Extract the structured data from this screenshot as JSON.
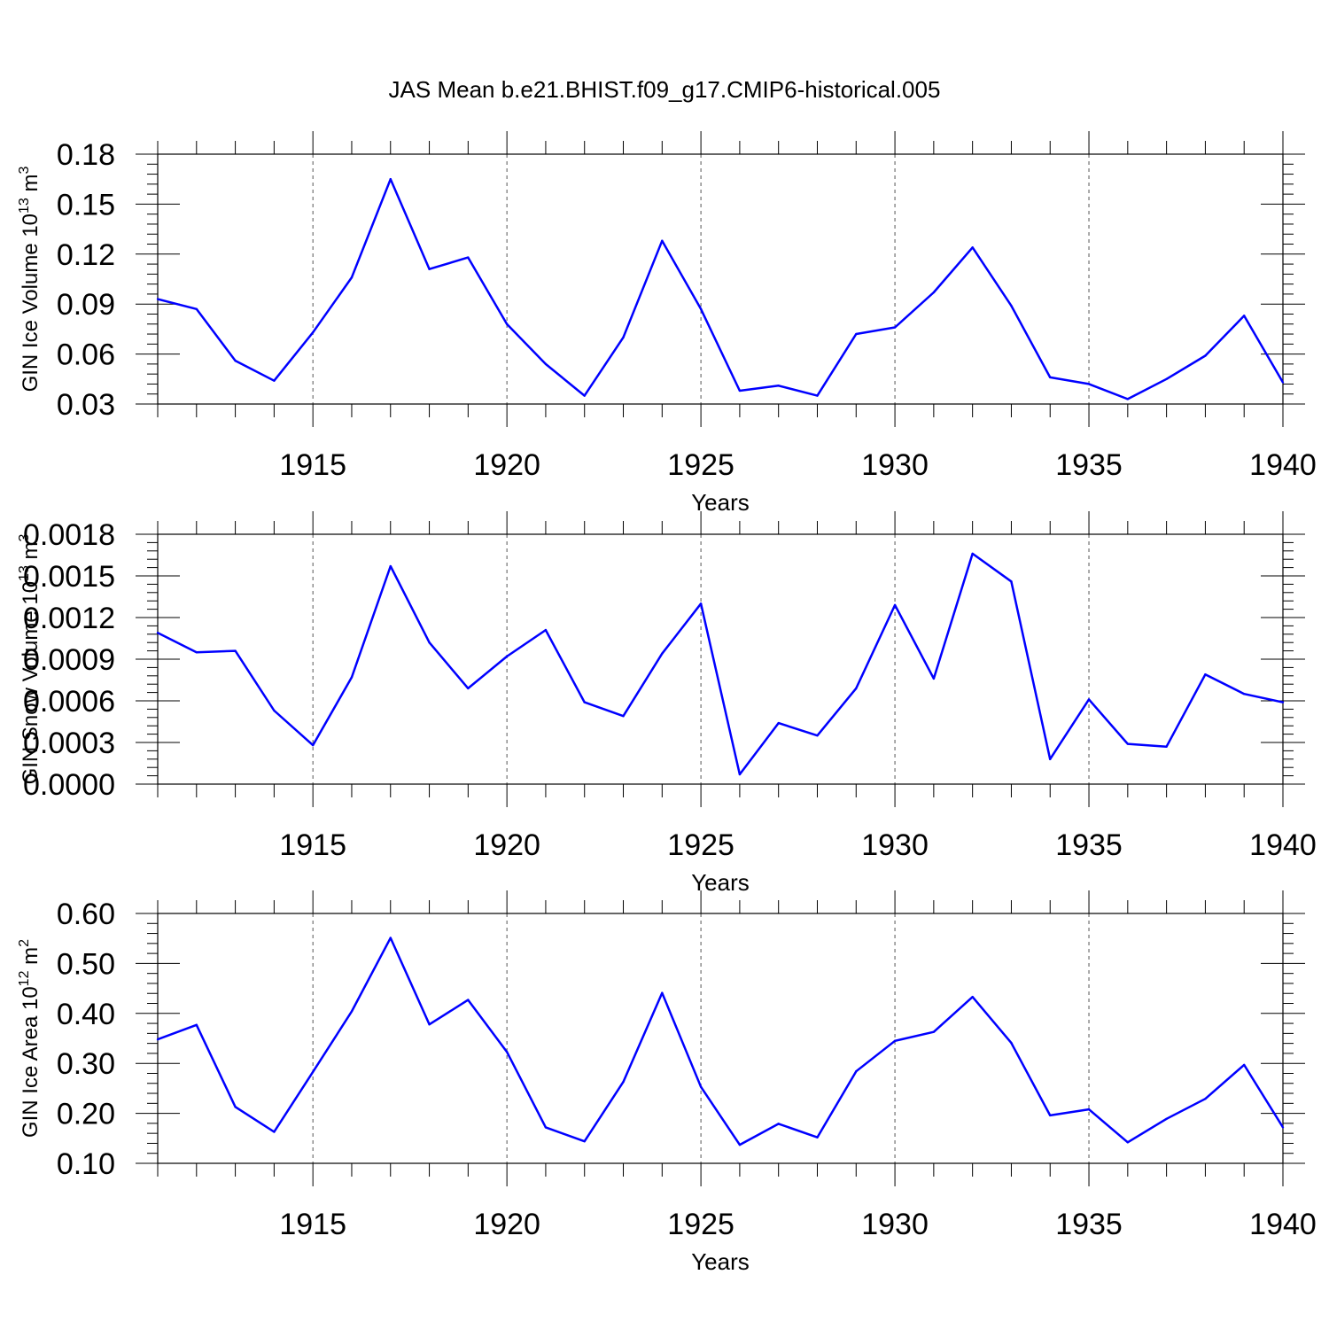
{
  "title": "JAS Mean b.e21.BHIST.f09_g17.CMIP6-historical.005",
  "colors": {
    "line": "#0000ff",
    "axis": "#000000",
    "grid": "#555555"
  },
  "chart_data": [
    {
      "type": "line",
      "ylabel": {
        "prefix": "GIN Ice Volume 10",
        "exp": "13",
        "unit": " m",
        "unit_exp": "3"
      },
      "xlabel": "Years",
      "xlim": [
        1911,
        1940
      ],
      "x_ticks": [
        1915,
        1920,
        1925,
        1930,
        1935,
        1940
      ],
      "ylim": [
        0.03,
        0.18
      ],
      "y_ticks": [
        "0.03",
        "0.06",
        "0.09",
        "0.12",
        "0.15",
        "0.18"
      ],
      "grid": "vertical dashed at major x ticks",
      "x": [
        1911,
        1912,
        1913,
        1914,
        1915,
        1916,
        1917,
        1918,
        1919,
        1920,
        1921,
        1922,
        1923,
        1924,
        1925,
        1926,
        1927,
        1928,
        1929,
        1930,
        1931,
        1932,
        1933,
        1934,
        1935,
        1936,
        1937,
        1938,
        1939,
        1940
      ],
      "values": [
        0.093,
        0.087,
        0.056,
        0.044,
        0.073,
        0.106,
        0.165,
        0.111,
        0.118,
        0.078,
        0.054,
        0.035,
        0.07,
        0.128,
        0.087,
        0.038,
        0.041,
        0.035,
        0.072,
        0.076,
        0.097,
        0.124,
        0.089,
        0.046,
        0.042,
        0.033,
        0.045,
        0.059,
        0.083,
        0.043
      ]
    },
    {
      "type": "line",
      "ylabel": {
        "prefix": "GIN Snow Volume 10",
        "exp": "13",
        "unit": " m",
        "unit_exp": "3"
      },
      "xlabel": "Years",
      "xlim": [
        1911,
        1940
      ],
      "x_ticks": [
        1915,
        1920,
        1925,
        1930,
        1935,
        1940
      ],
      "ylim": [
        0.0,
        0.0018
      ],
      "y_ticks": [
        "0.0000",
        "0.0003",
        "0.0006",
        "0.0009",
        "0.0012",
        "0.0015",
        "0.0018"
      ],
      "grid": "vertical dashed at major x ticks",
      "x": [
        1911,
        1912,
        1913,
        1914,
        1915,
        1916,
        1917,
        1918,
        1919,
        1920,
        1921,
        1922,
        1923,
        1924,
        1925,
        1926,
        1927,
        1928,
        1929,
        1930,
        1931,
        1932,
        1933,
        1934,
        1935,
        1936,
        1937,
        1938,
        1939,
        1940
      ],
      "values": [
        0.00109,
        0.00095,
        0.00096,
        0.00053,
        0.00028,
        0.00077,
        0.00157,
        0.00102,
        0.00069,
        0.00092,
        0.00111,
        0.00059,
        0.00049,
        0.00094,
        0.0013,
        7e-05,
        0.00044,
        0.00035,
        0.00069,
        0.00129,
        0.00076,
        0.00166,
        0.00146,
        0.00018,
        0.00061,
        0.00029,
        0.00027,
        0.00079,
        0.00065,
        0.00059
      ]
    },
    {
      "type": "line",
      "ylabel": {
        "prefix": "GIN Ice Area 10",
        "exp": "12",
        "unit": " m",
        "unit_exp": "2"
      },
      "xlabel": "Years",
      "xlim": [
        1911,
        1940
      ],
      "x_ticks": [
        1915,
        1920,
        1925,
        1930,
        1935,
        1940
      ],
      "ylim": [
        0.1,
        0.6
      ],
      "y_ticks": [
        "0.10",
        "0.20",
        "0.30",
        "0.40",
        "0.50",
        "0.60"
      ],
      "grid": "vertical dashed at major x ticks",
      "x": [
        1911,
        1912,
        1913,
        1914,
        1915,
        1916,
        1917,
        1918,
        1919,
        1920,
        1921,
        1922,
        1923,
        1924,
        1925,
        1926,
        1927,
        1928,
        1929,
        1930,
        1931,
        1932,
        1933,
        1934,
        1935,
        1936,
        1937,
        1938,
        1939,
        1940
      ],
      "values": [
        0.348,
        0.377,
        0.213,
        0.163,
        0.283,
        0.404,
        0.551,
        0.378,
        0.427,
        0.323,
        0.172,
        0.144,
        0.263,
        0.441,
        0.253,
        0.137,
        0.179,
        0.152,
        0.284,
        0.345,
        0.363,
        0.433,
        0.341,
        0.196,
        0.208,
        0.142,
        0.189,
        0.229,
        0.297,
        0.172
      ]
    }
  ]
}
